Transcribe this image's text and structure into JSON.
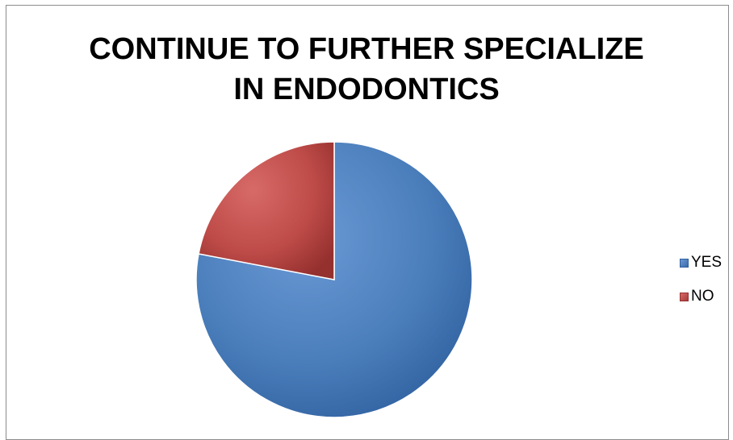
{
  "chart_data": {
    "type": "pie",
    "title_lines": [
      "CONTINUE TO FURTHER SPECIALIZE",
      "IN ENDODONTICS"
    ],
    "categories": [
      "YES",
      "NO"
    ],
    "values": [
      78,
      22
    ],
    "colors": {
      "YES": "#4a7ebb",
      "NO": "#be4b48"
    },
    "legend_position": "right"
  }
}
